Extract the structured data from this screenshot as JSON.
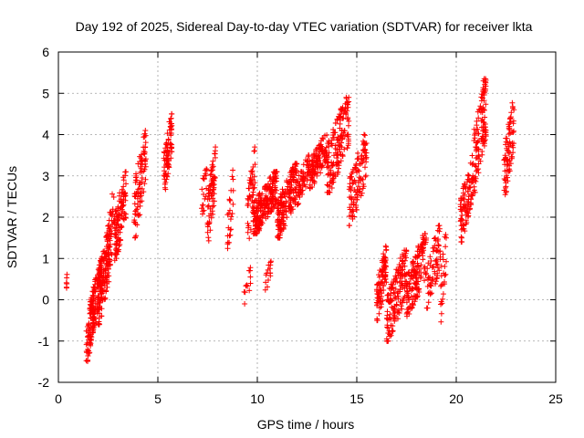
{
  "chart_data": {
    "type": "scatter",
    "title": "Day 192 of 2025, Sidereal Day-to-day VTEC variation (SDTVAR) for receiver lkta",
    "xlabel": "GPS time / hours",
    "ylabel": "SDTVAR / TECUs",
    "xlim": [
      0,
      25
    ],
    "ylim": [
      -2,
      6
    ],
    "x_ticks": [
      0,
      5,
      10,
      15,
      20,
      25
    ],
    "x_tick_labels": [
      "0",
      "5",
      "10",
      "15",
      "20",
      "25"
    ],
    "y_ticks": [
      -2,
      -1,
      0,
      1,
      2,
      3,
      4,
      5,
      6
    ],
    "y_tick_labels": [
      "-2",
      "-1",
      "0",
      "1",
      "2",
      "3",
      "4",
      "5",
      "6"
    ],
    "grid": true,
    "legend": "none",
    "marker": "plus",
    "color": "#ff0000",
    "clusters": [
      {
        "x": [
          0.4,
          0.45
        ],
        "y": [
          0.25,
          0.8
        ],
        "n": 6
      },
      {
        "x": [
          1.4,
          1.8
        ],
        "y": [
          -1.55,
          0.2
        ],
        "n": 70
      },
      {
        "x": [
          1.6,
          2.2
        ],
        "y": [
          -0.9,
          1.0
        ],
        "n": 110
      },
      {
        "x": [
          2.0,
          2.6
        ],
        "y": [
          -0.6,
          1.8
        ],
        "n": 110
      },
      {
        "x": [
          2.4,
          2.8
        ],
        "y": [
          0.3,
          2.7
        ],
        "n": 50
      },
      {
        "x": [
          2.8,
          3.4
        ],
        "y": [
          0.9,
          3.1
        ],
        "n": 110
      },
      {
        "x": [
          3.8,
          4.4
        ],
        "y": [
          1.5,
          4.1
        ],
        "n": 90
      },
      {
        "x": [
          5.3,
          5.7
        ],
        "y": [
          2.6,
          4.5
        ],
        "n": 80
      },
      {
        "x": [
          7.2,
          7.5
        ],
        "y": [
          1.9,
          3.6
        ],
        "n": 20
      },
      {
        "x": [
          7.5,
          7.9
        ],
        "y": [
          1.4,
          3.7
        ],
        "n": 70
      },
      {
        "x": [
          8.5,
          8.8
        ],
        "y": [
          1.1,
          3.2
        ],
        "n": 25
      },
      {
        "x": [
          9.3,
          9.7
        ],
        "y": [
          -0.1,
          0.8
        ],
        "n": 12
      },
      {
        "x": [
          9.5,
          9.9
        ],
        "y": [
          1.3,
          3.7
        ],
        "n": 45
      },
      {
        "x": [
          9.8,
          11.0
        ],
        "y": [
          1.6,
          3.1
        ],
        "n": 220
      },
      {
        "x": [
          10.4,
          10.7
        ],
        "y": [
          0.2,
          1.0
        ],
        "n": 15
      },
      {
        "x": [
          11.0,
          12.0
        ],
        "y": [
          1.5,
          3.3
        ],
        "n": 180
      },
      {
        "x": [
          12.0,
          12.6
        ],
        "y": [
          2.3,
          3.5
        ],
        "n": 60
      },
      {
        "x": [
          12.6,
          13.5
        ],
        "y": [
          2.7,
          4.0
        ],
        "n": 120
      },
      {
        "x": [
          13.5,
          14.6
        ],
        "y": [
          2.6,
          4.9
        ],
        "n": 160
      },
      {
        "x": [
          14.6,
          15.5
        ],
        "y": [
          1.8,
          4.0
        ],
        "n": 110
      },
      {
        "x": [
          16.0,
          16.5
        ],
        "y": [
          -0.5,
          1.3
        ],
        "n": 90
      },
      {
        "x": [
          16.5,
          17.5
        ],
        "y": [
          -1.0,
          1.2
        ],
        "n": 150
      },
      {
        "x": [
          17.5,
          18.5
        ],
        "y": [
          -0.4,
          1.6
        ],
        "n": 150
      },
      {
        "x": [
          18.5,
          19.2
        ],
        "y": [
          -0.2,
          1.8
        ],
        "n": 70
      },
      {
        "x": [
          19.2,
          19.5
        ],
        "y": [
          -0.6,
          1.8
        ],
        "n": 25
      },
      {
        "x": [
          20.2,
          20.8
        ],
        "y": [
          1.4,
          3.4
        ],
        "n": 90
      },
      {
        "x": [
          20.8,
          21.5
        ],
        "y": [
          2.5,
          5.35
        ],
        "n": 120
      },
      {
        "x": [
          22.4,
          22.9
        ],
        "y": [
          2.5,
          4.85
        ],
        "n": 80
      }
    ]
  }
}
